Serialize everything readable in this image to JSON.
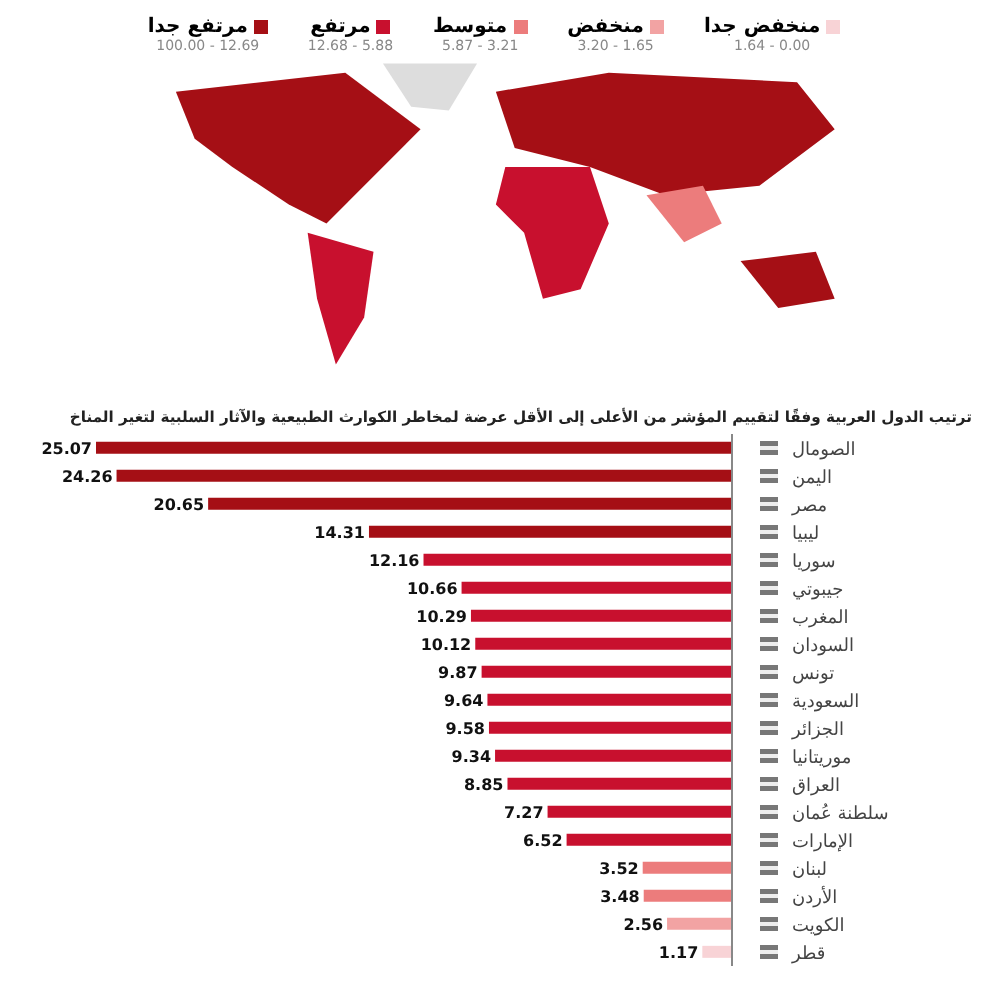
{
  "chart_data": [
    {
      "type": "other",
      "legend": "top",
      "series": [
        {
          "name": "مرتفع جدا",
          "color": "#a50f15"
        },
        {
          "name": "مرتفع",
          "color": "#c8102e"
        },
        {
          "name": "متوسط",
          "color": "#ec7c7c"
        },
        {
          "name": "منخفض",
          "color": "#f2a3a3"
        },
        {
          "name": "منخفض جدا",
          "color": "#f8d3d6"
        }
      ],
      "annotations": [
        "100.00 - 12.69",
        "12.68 - 5.88",
        "5.87 - 3.21",
        "3.20 - 1.65",
        "1.64 - 0.00"
      ]
    },
    {
      "type": "bar",
      "orientation": "horizontal",
      "title": "ترتيب الدول العربية وفقًا لتقييم المؤشر من الأعلى إلى الأقل عرضة لمخاطر الكوارث الطبيعية والآثار السلبية لتغير المناخ",
      "data_labels": true,
      "relative": false,
      "categories": [
        "الصومال",
        "اليمن",
        "مصر",
        "ليبيا",
        "سوريا",
        "جيبوتي",
        "المغرب",
        "السودان",
        "تونس",
        "السعودية",
        "الجزائر",
        "موريتانيا",
        "العراق",
        "سلطنة عُمان",
        "الإمارات",
        "لبنان",
        "الأردن",
        "الكويت",
        "قطر"
      ],
      "values": [
        25.07,
        24.26,
        20.65,
        14.31,
        12.16,
        10.66,
        10.29,
        10.12,
        9.87,
        9.64,
        9.58,
        9.34,
        8.85,
        7.27,
        6.52,
        3.52,
        3.48,
        2.56,
        1.17
      ],
      "colors": [
        "#a50f15",
        "#a50f15",
        "#a50f15",
        "#a50f15",
        "#c8102e",
        "#c8102e",
        "#c8102e",
        "#c8102e",
        "#c8102e",
        "#c8102e",
        "#c8102e",
        "#c8102e",
        "#c8102e",
        "#c8102e",
        "#c8102e",
        "#ec7c7c",
        "#ec7c7c",
        "#f2a3a3",
        "#f8d3d6"
      ]
    }
  ]
}
